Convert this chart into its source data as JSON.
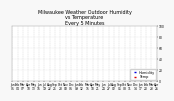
{
  "title": "Milwaukee Weather Outdoor Humidity\nvs Temperature\nEvery 5 Minutes",
  "title_fontsize": 3.5,
  "bg_color": "#f8f8f8",
  "plot_bg_color": "#ffffff",
  "grid_color": "#bbbbbb",
  "humidity_color": "#0000dd",
  "temp_color": "#dd0000",
  "ylim": [
    0,
    100
  ],
  "tick_fontsize": 2.2,
  "legend_labels": [
    "Humidity",
    "Temp"
  ],
  "legend_fontsize": 2.5,
  "n_points": 500,
  "n_xticks": 28
}
